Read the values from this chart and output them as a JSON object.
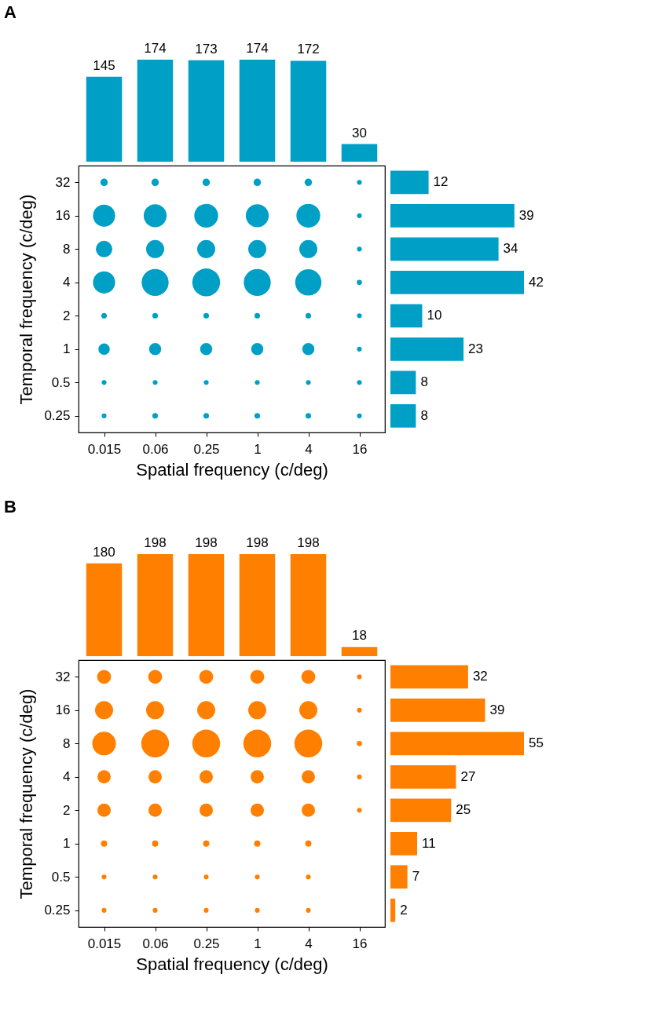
{
  "chart_data": [
    {
      "type": "bar",
      "title": "A",
      "categories": [
        "0.015",
        "0.06",
        "0.25",
        "1",
        "4",
        "16"
      ],
      "values": [
        145,
        174,
        173,
        174,
        172,
        30
      ],
      "color": "#00a0c6",
      "data_labels": true,
      "tick_labels": false
    },
    {
      "type": "bubble",
      "xlabel": "Spatial frequency (c/deg)",
      "ylabel": "Temporal frequency (c/deg)",
      "categories": [
        "0.015",
        "0.06",
        "0.25",
        "1",
        "4",
        "16"
      ],
      "log": "y",
      "ylim": [
        0.177,
        45.3
      ],
      "yticks": [
        0.25,
        0.5,
        1,
        2,
        4,
        8,
        16,
        32
      ],
      "series": [
        {
          "color": "#00a0c6",
          "values": [
            32,
            32,
            32,
            32,
            32,
            32
          ],
          "sizes": [
            0.07,
            0.07,
            0.07,
            0.07,
            0.07,
            0.03
          ]
        },
        {
          "color": "#00a0c6",
          "values": [
            16,
            16,
            16,
            16,
            16,
            16
          ],
          "sizes": [
            0.63,
            0.68,
            0.73,
            0.68,
            0.73,
            0.03
          ]
        },
        {
          "color": "#00a0c6",
          "values": [
            8,
            8,
            8,
            8,
            8,
            8
          ],
          "sizes": [
            0.35,
            0.42,
            0.42,
            0.42,
            0.42,
            0.03
          ]
        },
        {
          "color": "#00a0c6",
          "values": [
            4,
            4,
            4,
            4,
            4,
            4
          ],
          "sizes": [
            0.63,
            0.94,
            1,
            0.94,
            0.89,
            0.035
          ]
        },
        {
          "color": "#00a0c6",
          "values": [
            2,
            2,
            2,
            2,
            2,
            2
          ],
          "sizes": [
            0.04,
            0.04,
            0.04,
            0.04,
            0.04,
            0.03
          ]
        },
        {
          "color": "#00a0c6",
          "values": [
            1,
            1,
            1,
            1,
            1,
            1
          ],
          "sizes": [
            0.17,
            0.19,
            0.19,
            0.19,
            0.19,
            0.03
          ]
        },
        {
          "color": "#00a0c6",
          "values": [
            0.5,
            0.5,
            0.5,
            0.5,
            0.5,
            0.5
          ],
          "sizes": [
            0.03,
            0.03,
            0.03,
            0.03,
            0.03,
            0.03
          ]
        },
        {
          "color": "#00a0c6",
          "values": [
            0.25,
            0.25,
            0.25,
            0.25,
            0.25,
            0.25
          ],
          "sizes": [
            0.03,
            0.04,
            0.04,
            0.04,
            0.04,
            0.03
          ]
        }
      ]
    },
    {
      "type": "bar",
      "orientation": "horizontal",
      "categories": [
        "32",
        "16",
        "8",
        "4",
        "2",
        "1",
        "0.5",
        "0.25"
      ],
      "values": [
        12,
        39,
        34,
        42,
        10,
        23,
        8,
        8
      ],
      "color": "#00a0c6",
      "data_labels": true,
      "tick_labels": false
    },
    {
      "type": "bar",
      "title": "B",
      "categories": [
        "0.015",
        "0.06",
        "0.25",
        "1",
        "4",
        "16"
      ],
      "values": [
        180,
        198,
        198,
        198,
        198,
        18
      ],
      "color": "#ff8000",
      "data_labels": true,
      "tick_labels": false
    },
    {
      "type": "bubble",
      "xlabel": "Spatial frequency (c/deg)",
      "ylabel": "Temporal frequency (c/deg)",
      "categories": [
        "0.015",
        "0.06",
        "0.25",
        "1",
        "4",
        "16"
      ],
      "log": "y",
      "ylim": [
        0.177,
        45.3
      ],
      "yticks": [
        0.25,
        0.5,
        1,
        2,
        4,
        8,
        16,
        32
      ],
      "series": [
        {
          "color": "#ff8000",
          "values": [
            32,
            32,
            32,
            32,
            32,
            32
          ],
          "sizes": [
            0.25,
            0.25,
            0.25,
            0.25,
            0.25,
            0.03
          ]
        },
        {
          "color": "#ff8000",
          "values": [
            16,
            16,
            16,
            16,
            16,
            16
          ],
          "sizes": [
            0.42,
            0.42,
            0.42,
            0.42,
            0.42,
            0.03
          ]
        },
        {
          "color": "#ff8000",
          "values": [
            8,
            8,
            8,
            8,
            8,
            8
          ],
          "sizes": [
            0.72,
            1,
            1,
            1,
            1,
            0.035
          ]
        },
        {
          "color": "#ff8000",
          "values": [
            4,
            4,
            4,
            4,
            4,
            4
          ],
          "sizes": [
            0.23,
            0.23,
            0.23,
            0.23,
            0.23,
            0.03
          ]
        },
        {
          "color": "#ff8000",
          "values": [
            2,
            2,
            2,
            2,
            2,
            2
          ],
          "sizes": [
            0.23,
            0.23,
            0.23,
            0.23,
            0.23,
            0.03
          ]
        },
        {
          "color": "#ff8000",
          "values": [
            1,
            1,
            1,
            1,
            1,
            null
          ],
          "sizes": [
            0.05,
            0.05,
            0.05,
            0.05,
            0.05,
            null
          ]
        },
        {
          "color": "#ff8000",
          "values": [
            0.5,
            0.5,
            0.5,
            0.5,
            0.5,
            null
          ],
          "sizes": [
            0.03,
            0.03,
            0.03,
            0.03,
            0.03,
            null
          ]
        },
        {
          "color": "#ff8000",
          "values": [
            0.25,
            0.25,
            0.25,
            0.25,
            0.25,
            null
          ],
          "sizes": [
            0.03,
            0.03,
            0.03,
            0.03,
            0.03,
            null
          ]
        }
      ]
    },
    {
      "type": "bar",
      "orientation": "horizontal",
      "categories": [
        "32",
        "16",
        "8",
        "4",
        "2",
        "1",
        "0.5",
        "0.25"
      ],
      "values": [
        32,
        39,
        55,
        27,
        25,
        11,
        7,
        2
      ],
      "color": "#ff8000",
      "data_labels": true,
      "tick_labels": false
    }
  ]
}
